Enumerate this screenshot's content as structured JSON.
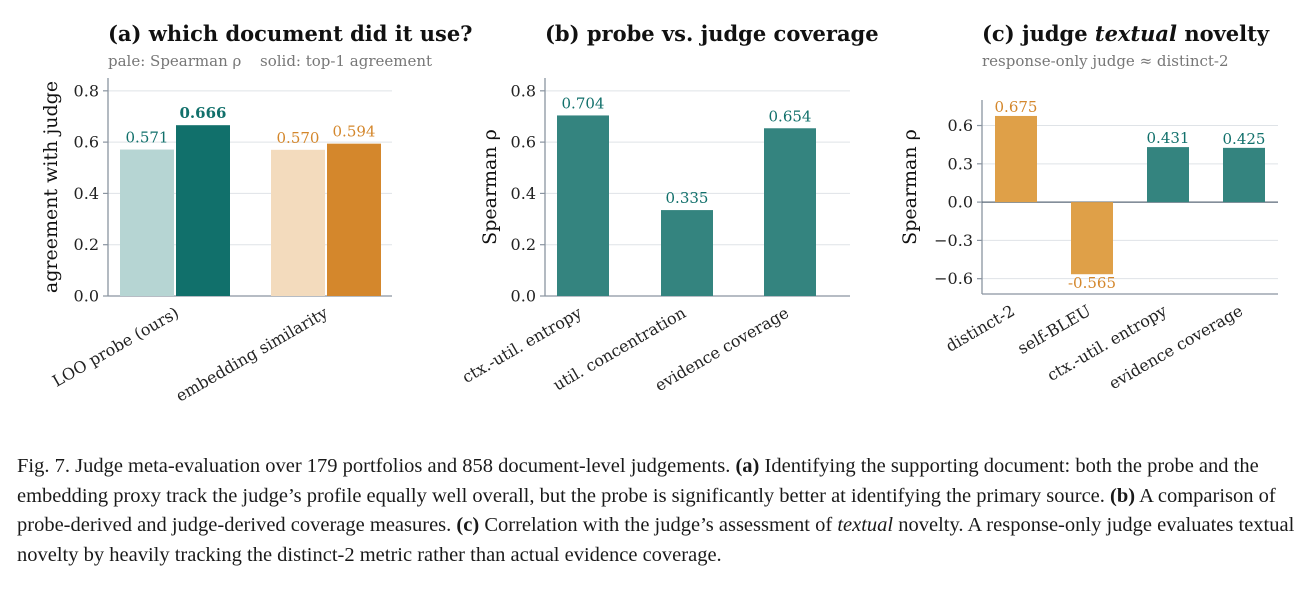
{
  "colors": {
    "teal": "#11706b",
    "teal_pale": "#b6d5d3",
    "teal_mid": "#34847f",
    "orange": "#d4872c",
    "orange_pale": "#f3dbbd",
    "orange_mid": "#dfa048",
    "axis": "#8a94a0",
    "grid": "#dfe3e7"
  },
  "chart_data": [
    {
      "id": "a",
      "type": "bar",
      "title": "(a) which document did it use?",
      "subtitle_left": "pale: Spearman ρ",
      "subtitle_right": "solid: top-1 agreement",
      "ylabel": "agreement with judge",
      "ylim": [
        0,
        0.85
      ],
      "yticks": [
        "0.0",
        "0.2",
        "0.4",
        "0.6",
        "0.8"
      ],
      "categories": [
        "LOO probe (ours)",
        "embedding similarity"
      ],
      "series": [
        {
          "name": "pale: Spearman ρ",
          "values": [
            0.571,
            0.57
          ],
          "labels": [
            "0.571",
            "0.570"
          ]
        },
        {
          "name": "solid: top-1 agreement",
          "values": [
            0.666,
            0.594
          ],
          "labels": [
            "0.666",
            "0.594"
          ]
        }
      ],
      "grid": true
    },
    {
      "id": "b",
      "type": "bar",
      "title": "(b) probe vs. judge coverage",
      "ylabel": "Spearman ρ",
      "ylim": [
        0,
        0.85
      ],
      "yticks": [
        "0.0",
        "0.2",
        "0.4",
        "0.6",
        "0.8"
      ],
      "categories": [
        "ctx.-util. entropy",
        "util. concentration",
        "evidence coverage"
      ],
      "values": [
        0.704,
        0.335,
        0.654
      ],
      "labels": [
        "0.704",
        "0.335",
        "0.654"
      ],
      "grid": true
    },
    {
      "id": "c",
      "type": "bar",
      "title_pre": "(c) judge ",
      "title_em": "textual",
      "title_post": " novelty",
      "subtitle": "response-only judge ≈ distinct-2",
      "ylabel": "Spearman ρ",
      "ylim": [
        -0.72,
        0.8
      ],
      "ytick_values": [
        -0.6,
        -0.3,
        0.0,
        0.3,
        0.6
      ],
      "yticks": [
        "−0.6",
        "−0.3",
        "0.0",
        "0.3",
        "0.6"
      ],
      "categories": [
        "distinct-2",
        "self-BLEU",
        "ctx.-util. entropy",
        "evidence coverage"
      ],
      "values": [
        0.675,
        -0.565,
        0.431,
        0.425
      ],
      "labels": [
        "0.675",
        "-0.565",
        "0.431",
        "0.425"
      ],
      "grid": true
    }
  ],
  "caption": {
    "lead": "Fig. 7.  Judge meta-evaluation over 179 portfolios and 858 document-level judgements. ",
    "a_tag": "(a)",
    "a_text": " Identifying the supporting document: both the probe and the embedding proxy track the judge’s profile equally well overall, but the probe is significantly better at identifying the primary source. ",
    "b_tag": "(b)",
    "b_text": " A comparison of probe-derived and judge-derived coverage measures. ",
    "c_tag": "(c)",
    "c_text": " Correlation with the judge’s assessment of ",
    "c_em": "textual",
    "c_text2": " novelty. A response-only judge evaluates textual novelty by heavily tracking the distinct-2 metric rather than actual evidence coverage."
  }
}
